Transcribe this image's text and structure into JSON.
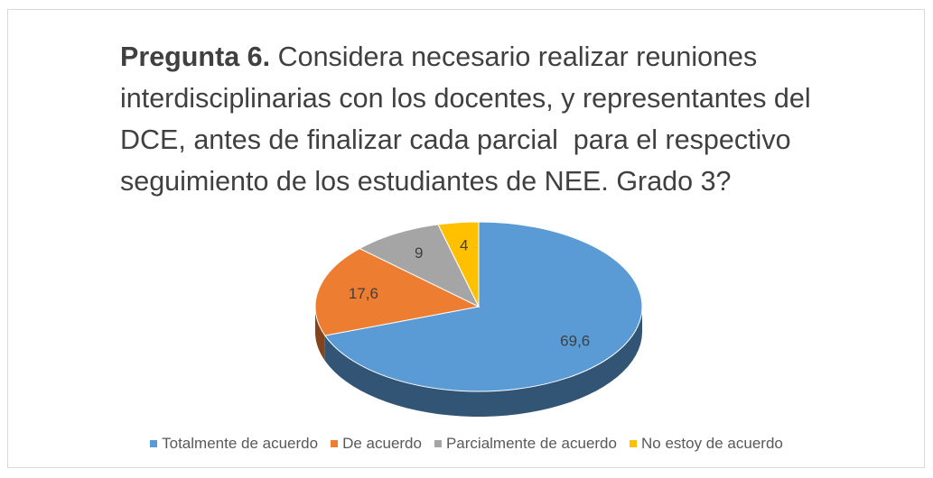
{
  "chart_data": {
    "type": "pie3d",
    "title_lead": "Pregunta 6.",
    "title": "Considera necesario realizar reuniones interdisciplinarias con los docentes, y representantes del DCE, antes de finalizar cada parcial  para el respectivo seguimiento de los estudiantes de NEE. Grado 3?",
    "series": [
      {
        "name": "Totalmente de acuerdo",
        "color": "#5b9bd5",
        "values": [
          69.6
        ],
        "value_labels": [
          "69,6"
        ]
      },
      {
        "name": "De acuerdo",
        "color": "#ed7d31",
        "values": [
          17.6
        ],
        "value_labels": [
          "17,6"
        ]
      },
      {
        "name": "Parcialmente de acuerdo",
        "color": "#a5a5a5",
        "values": [
          9
        ],
        "value_labels": [
          "9"
        ]
      },
      {
        "name": "No estoy de acuerdo",
        "color": "#ffc000",
        "values": [
          4
        ],
        "value_labels": [
          "4"
        ]
      }
    ],
    "legend": "bottom"
  }
}
